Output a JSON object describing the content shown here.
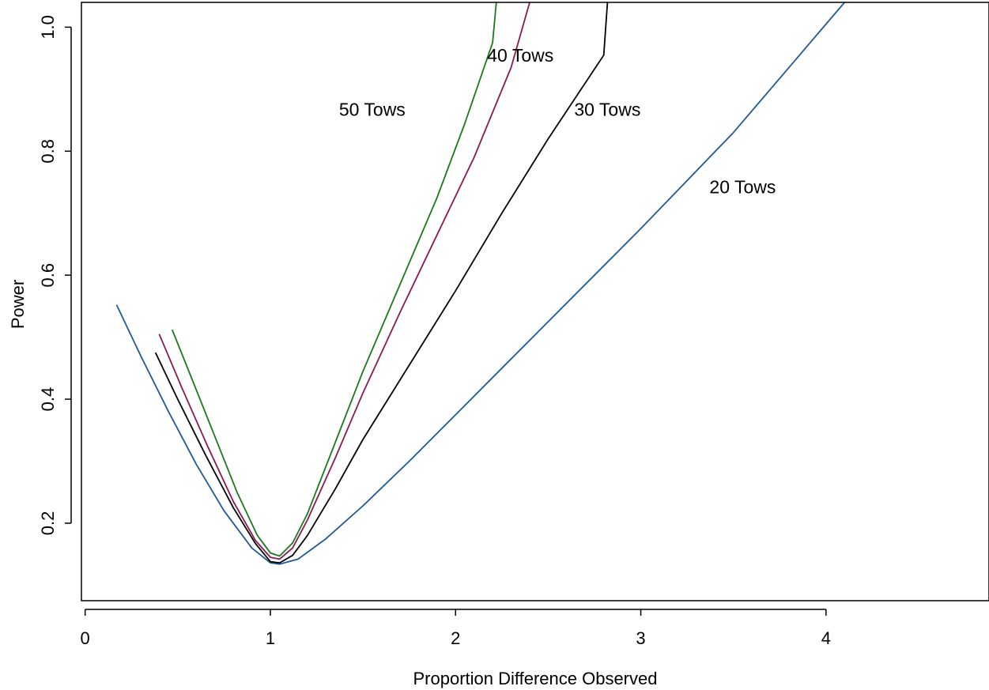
{
  "chart_data": {
    "type": "line",
    "title": "",
    "xlabel": "Proportion Difference Observed",
    "ylabel": "Power",
    "xlim": [
      -0.02,
      4.88
    ],
    "ylim": [
      0.075,
      1.04
    ],
    "x_ticks": [
      0,
      1,
      2,
      3,
      4
    ],
    "x_tick_labels": [
      "0",
      "1",
      "2",
      "3",
      "4"
    ],
    "y_ticks": [
      0.2,
      0.4,
      0.6,
      0.8,
      1.0
    ],
    "y_tick_labels": [
      "0.2",
      "0.4",
      "0.6",
      "0.8",
      "1.0"
    ],
    "grid": false,
    "legend": "none",
    "series": [
      {
        "name": "20 Tows",
        "color": "#1f5a96",
        "points": [
          [
            0.17,
            0.552
          ],
          [
            0.3,
            0.47
          ],
          [
            0.45,
            0.38
          ],
          [
            0.6,
            0.295
          ],
          [
            0.75,
            0.22
          ],
          [
            0.9,
            0.16
          ],
          [
            1.0,
            0.136
          ],
          [
            1.05,
            0.134
          ],
          [
            1.15,
            0.142
          ],
          [
            1.3,
            0.175
          ],
          [
            1.5,
            0.228
          ],
          [
            1.75,
            0.3
          ],
          [
            2.0,
            0.375
          ],
          [
            2.5,
            0.525
          ],
          [
            3.0,
            0.675
          ],
          [
            3.5,
            0.83
          ],
          [
            4.1,
            1.04
          ]
        ],
        "label_text": "20 Tows",
        "label_at": [
          3.55,
          0.74
        ]
      },
      {
        "name": "30 Tows",
        "color": "#000000",
        "points": [
          [
            0.38,
            0.475
          ],
          [
            0.5,
            0.4
          ],
          [
            0.65,
            0.31
          ],
          [
            0.8,
            0.225
          ],
          [
            0.92,
            0.167
          ],
          [
            1.0,
            0.138
          ],
          [
            1.05,
            0.136
          ],
          [
            1.12,
            0.148
          ],
          [
            1.2,
            0.18
          ],
          [
            1.35,
            0.255
          ],
          [
            1.5,
            0.335
          ],
          [
            1.75,
            0.455
          ],
          [
            2.0,
            0.575
          ],
          [
            2.25,
            0.7
          ],
          [
            2.5,
            0.82
          ],
          [
            2.8,
            0.955
          ],
          [
            2.82,
            1.04
          ]
        ],
        "label_text": "30 Tows",
        "label_at": [
          2.82,
          0.865
        ]
      },
      {
        "name": "40 Tows",
        "color": "#8b1a52",
        "points": [
          [
            0.4,
            0.505
          ],
          [
            0.52,
            0.42
          ],
          [
            0.66,
            0.325
          ],
          [
            0.8,
            0.235
          ],
          [
            0.92,
            0.172
          ],
          [
            1.0,
            0.145
          ],
          [
            1.05,
            0.142
          ],
          [
            1.12,
            0.16
          ],
          [
            1.2,
            0.205
          ],
          [
            1.35,
            0.305
          ],
          [
            1.5,
            0.41
          ],
          [
            1.7,
            0.54
          ],
          [
            1.9,
            0.665
          ],
          [
            2.1,
            0.79
          ],
          [
            2.3,
            0.935
          ],
          [
            2.4,
            1.04
          ]
        ],
        "label_text": "40 Tows",
        "label_at": [
          2.35,
          0.952
        ]
      },
      {
        "name": "50 Tows",
        "color": "#1a7a1a",
        "points": [
          [
            0.47,
            0.512
          ],
          [
            0.58,
            0.43
          ],
          [
            0.7,
            0.34
          ],
          [
            0.82,
            0.25
          ],
          [
            0.93,
            0.18
          ],
          [
            1.0,
            0.152
          ],
          [
            1.05,
            0.147
          ],
          [
            1.12,
            0.168
          ],
          [
            1.2,
            0.215
          ],
          [
            1.35,
            0.33
          ],
          [
            1.5,
            0.445
          ],
          [
            1.7,
            0.585
          ],
          [
            1.9,
            0.725
          ],
          [
            2.05,
            0.845
          ],
          [
            2.2,
            0.975
          ],
          [
            2.22,
            1.04
          ]
        ],
        "label_text": "50 Tows",
        "label_at": [
          1.55,
          0.865
        ]
      }
    ]
  }
}
